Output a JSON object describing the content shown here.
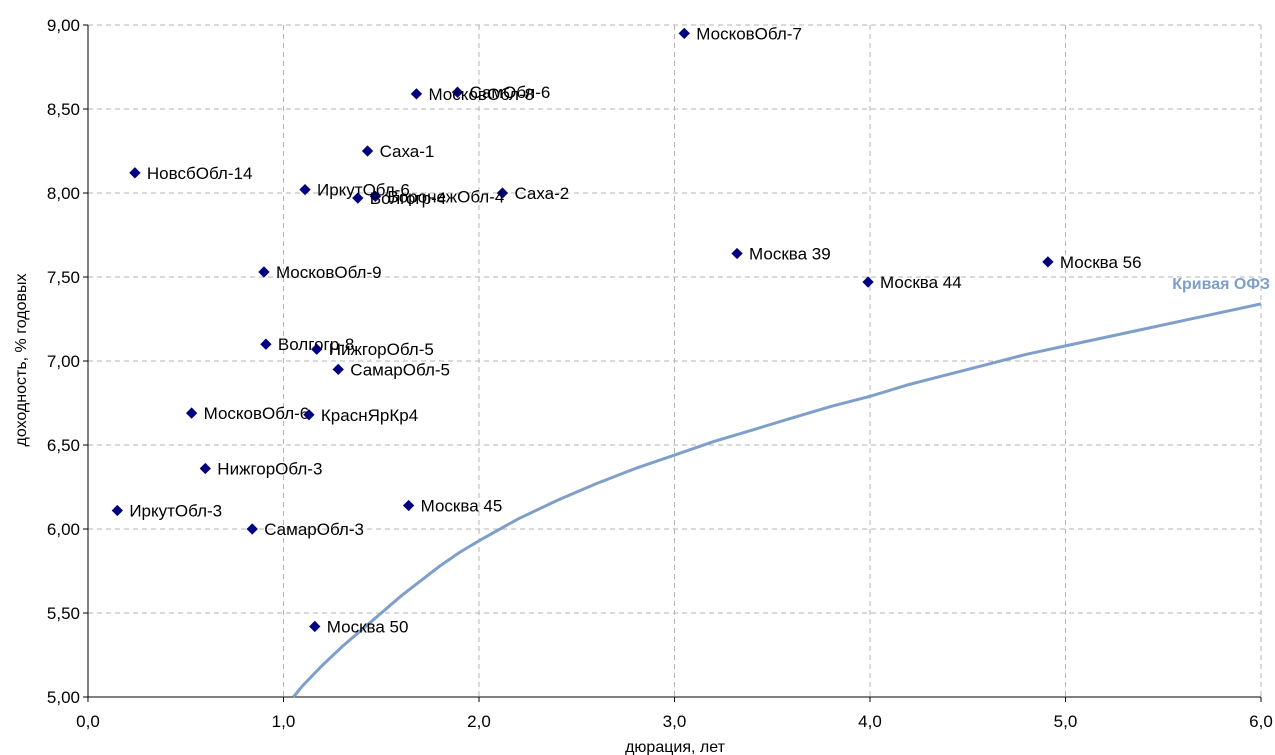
{
  "chart_data": {
    "type": "scatter",
    "title": "",
    "xlabel": "дюрация, лет",
    "ylabel": "доходность, % годовых",
    "xlim": [
      0,
      6
    ],
    "ylim": [
      5,
      9
    ],
    "grid": true,
    "x_ticks": [
      "0,0",
      "1,0",
      "2,0",
      "3,0",
      "4,0",
      "5,0",
      "6,0"
    ],
    "y_ticks": [
      "5,00",
      "5,50",
      "6,00",
      "6,50",
      "7,00",
      "7,50",
      "8,00",
      "8,50",
      "9,00"
    ],
    "marker_color": "#000080",
    "points": [
      {
        "name": "МосковОбл-7",
        "x": 3.05,
        "y": 8.95
      },
      {
        "name": "СамОбл-6",
        "x": 1.89,
        "y": 8.6
      },
      {
        "name": "МосковОбл-8",
        "x": 1.68,
        "y": 8.59
      },
      {
        "name": "Саха-1",
        "x": 1.43,
        "y": 8.25
      },
      {
        "name": "НовсбОбл-14",
        "x": 0.24,
        "y": 8.12
      },
      {
        "name": "ИркутОбл-6",
        "x": 1.11,
        "y": 8.02
      },
      {
        "name": "Саха-2",
        "x": 2.12,
        "y": 8.0
      },
      {
        "name": "ВоронежОбл-4",
        "x": 1.47,
        "y": 7.98
      },
      {
        "name": "Волгогр-4",
        "x": 1.38,
        "y": 7.97
      },
      {
        "name": "Москва 39",
        "x": 3.32,
        "y": 7.64
      },
      {
        "name": "Москва 56",
        "x": 4.91,
        "y": 7.59
      },
      {
        "name": "МосковОбл-9",
        "x": 0.9,
        "y": 7.53
      },
      {
        "name": "Москва 44",
        "x": 3.99,
        "y": 7.47
      },
      {
        "name": "Волгогр-8",
        "x": 0.91,
        "y": 7.1
      },
      {
        "name": "НижгорОбл-5",
        "x": 1.17,
        "y": 7.07
      },
      {
        "name": "СамарОбл-5",
        "x": 1.28,
        "y": 6.95
      },
      {
        "name": "МосковОбл-6",
        "x": 0.53,
        "y": 6.69
      },
      {
        "name": "КраснЯрКр4",
        "x": 1.13,
        "y": 6.68
      },
      {
        "name": "НижгорОбл-3",
        "x": 0.6,
        "y": 6.36
      },
      {
        "name": "Москва 45",
        "x": 1.64,
        "y": 6.14
      },
      {
        "name": "ИркутОбл-3",
        "x": 0.15,
        "y": 6.11
      },
      {
        "name": "СамарОбл-3",
        "x": 0.84,
        "y": 6.0
      },
      {
        "name": "Москва 50",
        "x": 1.16,
        "y": 5.42
      }
    ],
    "curve": {
      "name": "Кривая ОФЗ",
      "color": "#7f9fcb",
      "x": [
        1.05,
        1.1,
        1.2,
        1.3,
        1.4,
        1.5,
        1.6,
        1.7,
        1.8,
        1.9,
        2.0,
        2.2,
        2.4,
        2.6,
        2.8,
        3.0,
        3.2,
        3.4,
        3.6,
        3.8,
        4.0,
        4.2,
        4.4,
        4.6,
        4.8,
        5.0,
        5.2,
        5.4,
        5.6,
        5.8,
        6.0
      ],
      "y": [
        5.0,
        5.07,
        5.19,
        5.3,
        5.4,
        5.5,
        5.6,
        5.69,
        5.78,
        5.86,
        5.93,
        6.06,
        6.17,
        6.27,
        6.36,
        6.44,
        6.52,
        6.59,
        6.66,
        6.73,
        6.79,
        6.86,
        6.92,
        6.98,
        7.04,
        7.09,
        7.14,
        7.19,
        7.24,
        7.29,
        7.34
      ]
    }
  }
}
